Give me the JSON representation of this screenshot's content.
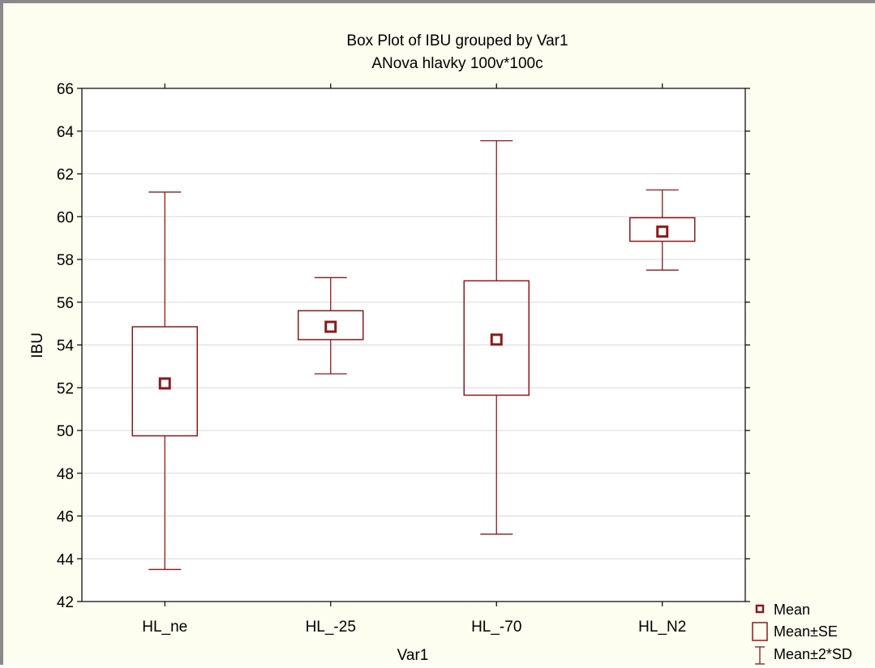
{
  "chart_data": {
    "type": "box",
    "title": "Box Plot of IBU grouped by  Var1",
    "subtitle": "ANova hlavky 100v*100c",
    "xlabel": "Var1",
    "ylabel": "IBU",
    "ylim": [
      42,
      66
    ],
    "yticks": [
      42,
      44,
      46,
      48,
      50,
      52,
      54,
      56,
      58,
      60,
      62,
      64,
      66
    ],
    "grid": true,
    "categories": [
      "HL_ne",
      "HL_-25",
      "HL_-70",
      "HL_N2"
    ],
    "groups": [
      {
        "category": "HL_ne",
        "mean": 52.2,
        "se_low": 49.75,
        "se_high": 54.85,
        "sd2_low": 43.5,
        "sd2_high": 61.15
      },
      {
        "category": "HL_-25",
        "mean": 54.85,
        "se_low": 54.25,
        "se_high": 55.6,
        "sd2_low": 52.65,
        "sd2_high": 57.15
      },
      {
        "category": "HL_-70",
        "mean": 54.25,
        "se_low": 51.65,
        "se_high": 57.0,
        "sd2_low": 45.15,
        "sd2_high": 63.55
      },
      {
        "category": "HL_N2",
        "mean": 59.3,
        "se_low": 58.85,
        "se_high": 59.95,
        "sd2_low": 57.5,
        "sd2_high": 61.25
      }
    ],
    "legend": {
      "placement": "bottom-right",
      "items": [
        "Mean",
        "Mean±SE",
        "Mean±2*SD"
      ]
    },
    "colors": {
      "series": "#8b1a1a",
      "grid": "#d9d9d9",
      "plot_background": "#ffffff",
      "window_background": "#fdfdf0"
    }
  }
}
